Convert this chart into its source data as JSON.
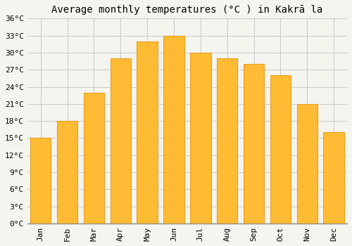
{
  "title": "Average monthly temperatures (°C ) in Kakrā la",
  "months": [
    "Jan",
    "Feb",
    "Mar",
    "Apr",
    "May",
    "Jun",
    "Jul",
    "Aug",
    "Sep",
    "Oct",
    "Nov",
    "Dec"
  ],
  "values": [
    15,
    18,
    23,
    29,
    32,
    33,
    30,
    29,
    28,
    26,
    21,
    16
  ],
  "bar_color": "#FFBB33",
  "bar_edge_color": "#E8A020",
  "background_color": "#F5F5F0",
  "grid_color": "#CCCCCC",
  "ylim": [
    0,
    36
  ],
  "ytick_step": 3,
  "title_fontsize": 10,
  "tick_fontsize": 8,
  "font_family": "monospace",
  "bar_width": 0.78
}
